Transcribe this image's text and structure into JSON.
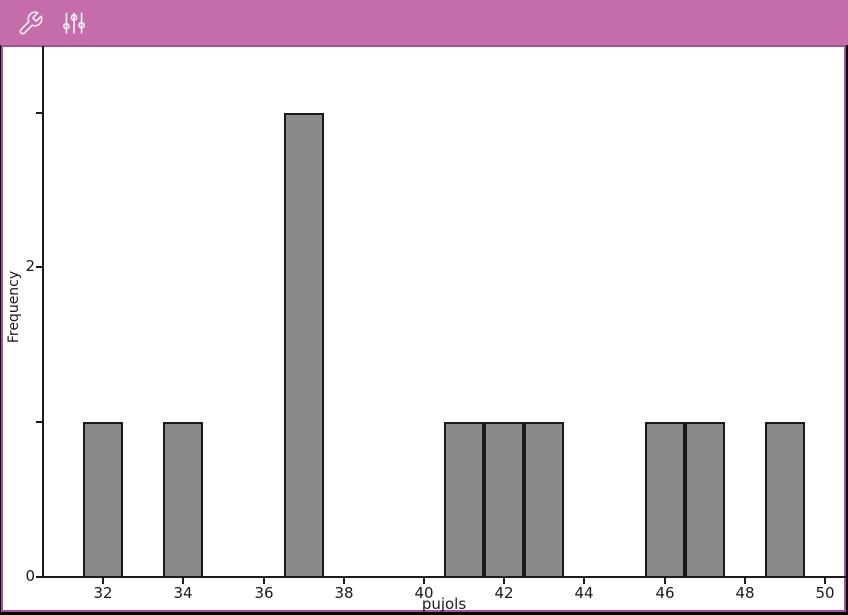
{
  "toolbar": {
    "background": "#C56CAB",
    "icons": [
      {
        "name": "wrench-icon"
      },
      {
        "name": "sliders-icon"
      }
    ]
  },
  "page": {
    "border_color": "#A5509C",
    "background": "#FFFFFF"
  },
  "chart_data": {
    "type": "bar",
    "subtype": "histogram",
    "title": "",
    "xlabel": "pujols",
    "ylabel": "Frequency",
    "bin_width": 1,
    "bars": [
      {
        "center": 32,
        "frequency": 1
      },
      {
        "center": 34,
        "frequency": 1
      },
      {
        "center": 37,
        "frequency": 3
      },
      {
        "center": 41,
        "frequency": 1
      },
      {
        "center": 42,
        "frequency": 1
      },
      {
        "center": 43,
        "frequency": 1
      },
      {
        "center": 46,
        "frequency": 1
      },
      {
        "center": 47,
        "frequency": 1
      },
      {
        "center": 49,
        "frequency": 1
      }
    ],
    "x_ticks": [
      32,
      34,
      36,
      38,
      40,
      42,
      44,
      46,
      48,
      50
    ],
    "y_ticks": [
      0,
      1,
      2,
      3
    ],
    "y_tick_labels_shown": [
      0,
      2
    ],
    "xlim": [
      30.5,
      50.5
    ],
    "ylim": [
      0,
      3.43
    ],
    "grid": false,
    "legend": "none",
    "bar_fill": "#8A8A8A",
    "bar_border": "#1A1A1A",
    "axis_color": "#1A1A1A"
  }
}
